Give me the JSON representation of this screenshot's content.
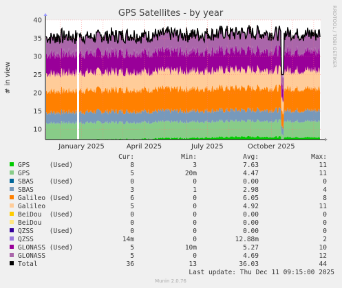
{
  "chart_data": {
    "type": "area",
    "title": "GPS Satellites - by year",
    "ylabel": "# in view",
    "ylim": [
      0,
      40
    ],
    "yticks": [
      10,
      15,
      20,
      25,
      30,
      35,
      40
    ],
    "x_range": [
      "2024-11-10",
      "2025-12-11"
    ],
    "x_ticks": [
      {
        "label": "January 2025",
        "date": "2025-01-01"
      },
      {
        "label": "April 2025",
        "date": "2025-04-01"
      },
      {
        "label": "July 2025",
        "date": "2025-07-01"
      },
      {
        "label": "October 2025",
        "date": "2025-10-01"
      }
    ],
    "grid": true,
    "gaps": [
      [
        "2024-12-26",
        "2024-12-28"
      ]
    ],
    "dropout": {
      "date": "2025-10-17",
      "total": 25
    },
    "series": [
      {
        "name": "GPS (Used)",
        "color": "#00cc00",
        "values": [
          6.8,
          7.3,
          7.6,
          8.0,
          7.8
        ]
      },
      {
        "name": "GPS",
        "color": "#88cc88",
        "values": [
          4.9,
          4.6,
          4.4,
          4.3,
          4.4
        ]
      },
      {
        "name": "SBAS (Used)",
        "color": "#006699",
        "values": [
          0,
          0,
          0,
          0,
          0
        ]
      },
      {
        "name": "SBAS",
        "color": "#7799bb",
        "values": [
          2.9,
          3.0,
          3.0,
          3.0,
          3.0
        ]
      },
      {
        "name": "Galileo (Used)",
        "color": "#ff8000",
        "values": [
          5.9,
          6.0,
          6.1,
          6.1,
          6.0
        ]
      },
      {
        "name": "Galileo",
        "color": "#ffcc99",
        "values": [
          4.8,
          4.9,
          4.9,
          5.0,
          5.0
        ]
      },
      {
        "name": "BeiDou (Used)",
        "color": "#ffcc00",
        "values": [
          0,
          0,
          0,
          0,
          0
        ]
      },
      {
        "name": "BeiDou",
        "color": "#ffe680",
        "values": [
          0,
          0,
          0,
          0,
          0
        ]
      },
      {
        "name": "QZSS (Used)",
        "color": "#330099",
        "values": [
          0,
          0,
          0,
          0,
          0
        ]
      },
      {
        "name": "QZSS",
        "color": "#9977dd",
        "values": [
          0.013,
          0.013,
          0.013,
          0.013,
          0.013
        ]
      },
      {
        "name": "GLONASS (Used)",
        "color": "#990099",
        "values": [
          5.3,
          5.2,
          5.3,
          5.3,
          5.2
        ]
      },
      {
        "name": "GLONASS",
        "color": "#aa66aa",
        "values": [
          4.7,
          4.6,
          4.7,
          4.8,
          4.7
        ]
      }
    ],
    "series_x": [
      "2024-11-10",
      "2025-02-15",
      "2025-05-20",
      "2025-08-25",
      "2025-12-11"
    ],
    "total": {
      "name": "Total",
      "color": "#000000"
    },
    "legend": {
      "headers": [
        "Cur:",
        "Min:",
        "Avg:",
        "Max:"
      ],
      "rows": [
        {
          "label": "GPS     (Used)",
          "color": "#00cc00",
          "cur": "8",
          "min": "3",
          "avg": "7.63",
          "max": "11"
        },
        {
          "label": "GPS",
          "color": "#88cc88",
          "cur": "5",
          "min": "20m",
          "avg": "4.47",
          "max": "11"
        },
        {
          "label": "SBAS    (Used)",
          "color": "#006699",
          "cur": "0",
          "min": "0",
          "avg": "0.00",
          "max": "0"
        },
        {
          "label": "SBAS",
          "color": "#7799bb",
          "cur": "3",
          "min": "1",
          "avg": "2.98",
          "max": "4"
        },
        {
          "label": "Galileo (Used)",
          "color": "#ff8000",
          "cur": "6",
          "min": "0",
          "avg": "6.05",
          "max": "8"
        },
        {
          "label": "Galileo",
          "color": "#ffcc99",
          "cur": "5",
          "min": "0",
          "avg": "4.92",
          "max": "11"
        },
        {
          "label": "BeiDou  (Used)",
          "color": "#ffcc00",
          "cur": "0",
          "min": "0",
          "avg": "0.00",
          "max": "0"
        },
        {
          "label": "BeiDou",
          "color": "#ffe680",
          "cur": "0",
          "min": "0",
          "avg": "0.00",
          "max": "0"
        },
        {
          "label": "QZSS    (Used)",
          "color": "#330099",
          "cur": "0",
          "min": "0",
          "avg": "0.00",
          "max": "0"
        },
        {
          "label": "QZSS",
          "color": "#9977dd",
          "cur": "14m",
          "min": "0",
          "avg": "12.88m",
          "max": "2"
        },
        {
          "label": "GLONASS (Used)",
          "color": "#990099",
          "cur": "5",
          "min": "10m",
          "avg": "5.27",
          "max": "10"
        },
        {
          "label": "GLONASS",
          "color": "#aa66aa",
          "cur": "5",
          "min": "0",
          "avg": "4.69",
          "max": "12"
        },
        {
          "label": "Total",
          "color": "#000000",
          "cur": "36",
          "min": "13",
          "avg": "36.03",
          "max": "44"
        }
      ]
    },
    "last_update": "Last update: Thu Dec 11 09:15:00 2025",
    "side_text": "RRDTOOL / TOBI OETIKER",
    "footer": "Munin 2.0.76"
  }
}
